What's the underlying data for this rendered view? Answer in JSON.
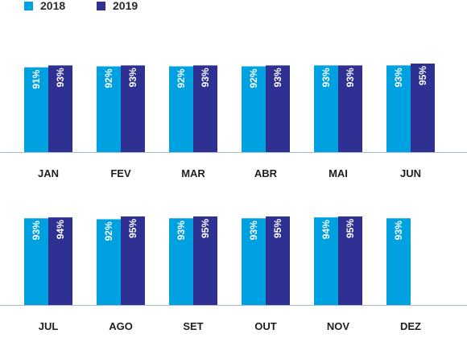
{
  "legend": [
    {
      "label": "2018",
      "color": "#00a1e0"
    },
    {
      "label": "2019",
      "color": "#2e3192"
    }
  ],
  "chart_data": [
    {
      "type": "bar",
      "title": "",
      "xlabel": "",
      "ylabel": "",
      "ylim": [
        0,
        100
      ],
      "grid": false,
      "legend_position": "top-left",
      "categories": [
        "JAN",
        "FEV",
        "MAR",
        "ABR",
        "MAI",
        "JUN"
      ],
      "series": [
        {
          "name": "2018",
          "color": "#00a1e0",
          "values": [
            91,
            92,
            92,
            92,
            93,
            93
          ],
          "labels": [
            "91%",
            "92%",
            "92%",
            "92%",
            "93%",
            "93%"
          ]
        },
        {
          "name": "2019",
          "color": "#2e3192",
          "values": [
            93,
            93,
            93,
            93,
            93,
            95
          ],
          "labels": [
            "93%",
            "93%",
            "93%",
            "93%",
            "93%",
            "95%"
          ]
        }
      ]
    },
    {
      "type": "bar",
      "title": "",
      "xlabel": "",
      "ylabel": "",
      "ylim": [
        0,
        100
      ],
      "grid": false,
      "legend_position": "top-left",
      "categories": [
        "JUL",
        "AGO",
        "SET",
        "OUT",
        "NOV",
        "DEZ"
      ],
      "series": [
        {
          "name": "2018",
          "color": "#00a1e0",
          "values": [
            93,
            92,
            93,
            93,
            94,
            93
          ],
          "labels": [
            "93%",
            "92%",
            "93%",
            "93%",
            "94%",
            "93%"
          ]
        },
        {
          "name": "2019",
          "color": "#2e3192",
          "values": [
            94,
            95,
            95,
            95,
            95,
            null
          ],
          "labels": [
            "94%",
            "95%",
            "95%",
            "95%",
            "95%",
            null
          ]
        }
      ]
    }
  ]
}
